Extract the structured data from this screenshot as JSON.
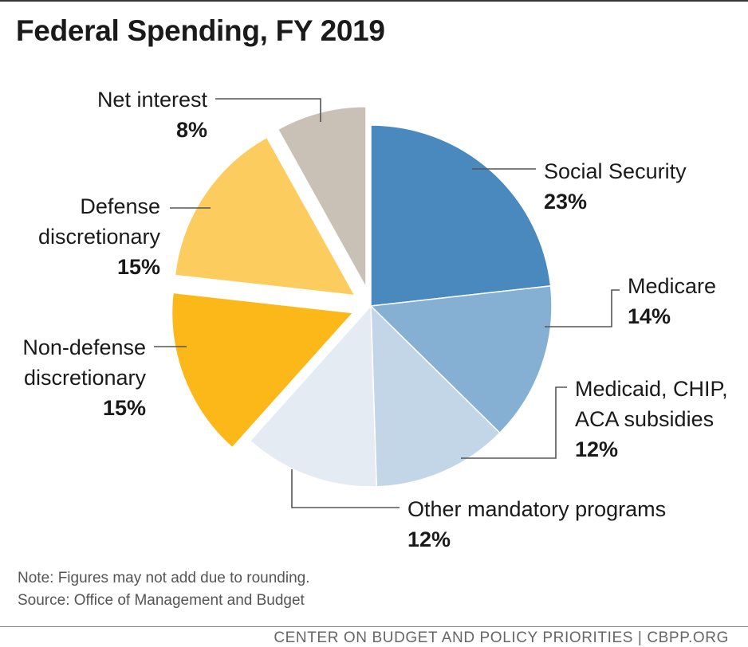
{
  "chart_data": {
    "type": "pie",
    "title": "Federal Spending, FY 2019",
    "slices": [
      {
        "name_lines": [
          "Social Security"
        ],
        "pct_label": "23%",
        "value": 23,
        "color": "#4a89bd"
      },
      {
        "name_lines": [
          "Medicare"
        ],
        "pct_label": "14%",
        "value": 14,
        "color": "#85b0d3"
      },
      {
        "name_lines": [
          "Medicaid, CHIP,",
          "ACA subsidies"
        ],
        "pct_label": "12%",
        "value": 12,
        "color": "#c2d6e8"
      },
      {
        "name_lines": [
          "Other mandatory programs"
        ],
        "pct_label": "12%",
        "value": 12,
        "color": "#e5ebf3"
      },
      {
        "name_lines": [
          "Non-defense",
          "discretionary"
        ],
        "pct_label": "15%",
        "value": 15,
        "color": "#fcb718"
      },
      {
        "name_lines": [
          "Defense",
          "discretionary"
        ],
        "pct_label": "15%",
        "value": 15,
        "color": "#fdcc5e"
      },
      {
        "name_lines": [
          "Net interest"
        ],
        "pct_label": "8%",
        "value": 8,
        "color": "#c9c1b5"
      }
    ],
    "exploded": [
      "Non-defense",
      "Defense",
      "Net interest"
    ]
  },
  "notes": {
    "rounding": "Note: Figures may not add due to rounding.",
    "source": "Source: Office of Management and Budget"
  },
  "footer": "CENTER ON BUDGET AND POLICY PRIORITIES | CBPP.ORG"
}
